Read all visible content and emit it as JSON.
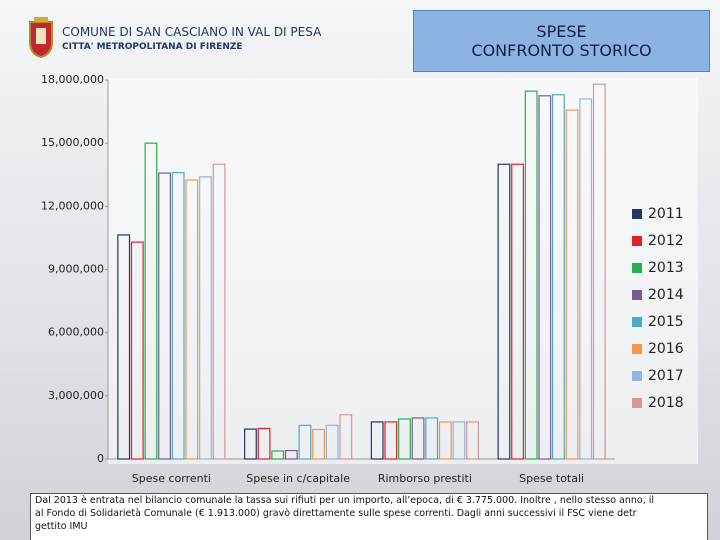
{
  "header": {
    "title": "COMUNE DI SAN CASCIANO IN VAL DI PESA",
    "subtitle": "CITTA' METROPOLITANA DI FIRENZE",
    "box_lines": [
      "SPESE",
      "CONFRONTO STORICO"
    ]
  },
  "chart_data": {
    "type": "bar",
    "categories": [
      "Spese correnti",
      "Spese in c/capitale",
      "Rimborso prestiti",
      "Spese totali"
    ],
    "series": [
      {
        "name": "2011",
        "color": "#1f3864",
        "values": [
          10640000,
          1420000,
          1760000,
          14000000
        ]
      },
      {
        "name": "2012",
        "color": "#e0202a",
        "values": [
          10300000,
          1450000,
          1760000,
          14000000
        ]
      },
      {
        "name": "2013",
        "color": "#22b14c",
        "values": [
          15000000,
          380000,
          1900000,
          17470000
        ]
      },
      {
        "name": "2014",
        "color": "#7a5c94",
        "values": [
          13580000,
          400000,
          1950000,
          17250000
        ]
      },
      {
        "name": "2015",
        "color": "#4bacc6",
        "values": [
          13600000,
          1600000,
          1950000,
          17300000
        ]
      },
      {
        "name": "2016",
        "color": "#f79646",
        "values": [
          13250000,
          1400000,
          1760000,
          16570000
        ]
      },
      {
        "name": "2017",
        "color": "#8fb4e3",
        "values": [
          13400000,
          1600000,
          1760000,
          17100000
        ]
      },
      {
        "name": "2018",
        "color": "#d99694",
        "values": [
          14000000,
          2100000,
          1760000,
          17800000
        ]
      }
    ],
    "ylim": [
      0,
      18000000
    ],
    "yticks": [
      0,
      {
        "value": 3000000,
        "label": "3,000,000"
      },
      {
        "value": 6000000,
        "label": "6,000,000"
      },
      {
        "value": 9000000,
        "label": "9,000,000"
      },
      {
        "value": 12000000,
        "label": "12,000,000"
      },
      {
        "value": 15000000,
        "label": "15,000,000"
      },
      {
        "value": 18000000,
        "label": "18,000,000"
      }
    ],
    "legend": "right"
  },
  "footer": {
    "lines": [
      "Dal 2013 è entrata nel bilancio comunale la tassa sui rifiuti per un importo, all’epoca, di € 3.775.000. Inoltre , nello stesso anno, il",
      "al Fondo di Solidarietà Comunale (€ 1.913.000) gravò direttamente sulle spese correnti. Dagli anni successivi il FSC viene detr",
      "gettito IMU"
    ]
  }
}
